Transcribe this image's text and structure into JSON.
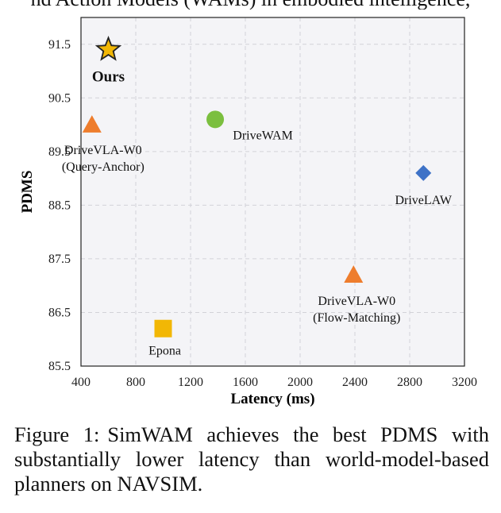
{
  "header_fragment": "nd Action Models (WAMs) in embodied intelligence,",
  "chart_data": {
    "type": "scatter",
    "xlabel": "Latency (ms)",
    "ylabel": "PDMS",
    "xlim": [
      400,
      3200
    ],
    "ylim": [
      85.5,
      92.0
    ],
    "xticks": [
      400,
      800,
      1200,
      1600,
      2000,
      2400,
      2800,
      3200
    ],
    "yticks": [
      85.5,
      86.5,
      87.5,
      88.5,
      89.5,
      90.5,
      91.5
    ],
    "grid": true,
    "points": [
      {
        "label": "Ours",
        "x": 600,
        "y": 91.4,
        "marker": "star",
        "color": "#f2b705",
        "bold": true
      },
      {
        "label": "DriveVLA-W0\n(Query-Anchor)",
        "x": 480,
        "y": 90.0,
        "marker": "triangle",
        "color": "#ee7d2d"
      },
      {
        "label": "DriveWAM",
        "x": 1380,
        "y": 90.1,
        "marker": "circle",
        "color": "#7bbf3f"
      },
      {
        "label": "DriveLAW",
        "x": 2900,
        "y": 89.1,
        "marker": "diamond",
        "color": "#3e72c7"
      },
      {
        "label": "DriveVLA-W0\n(Flow-Matching)",
        "x": 2390,
        "y": 87.2,
        "marker": "triangle",
        "color": "#ee7d2d"
      },
      {
        "label": "Epona",
        "x": 1000,
        "y": 86.2,
        "marker": "square",
        "color": "#f2b705"
      }
    ]
  },
  "caption": {
    "label": "Figure 1:",
    "text": "SimWAM achieves the best PDMS with substantially lower latency than world-model-based planners on NAVSIM."
  }
}
